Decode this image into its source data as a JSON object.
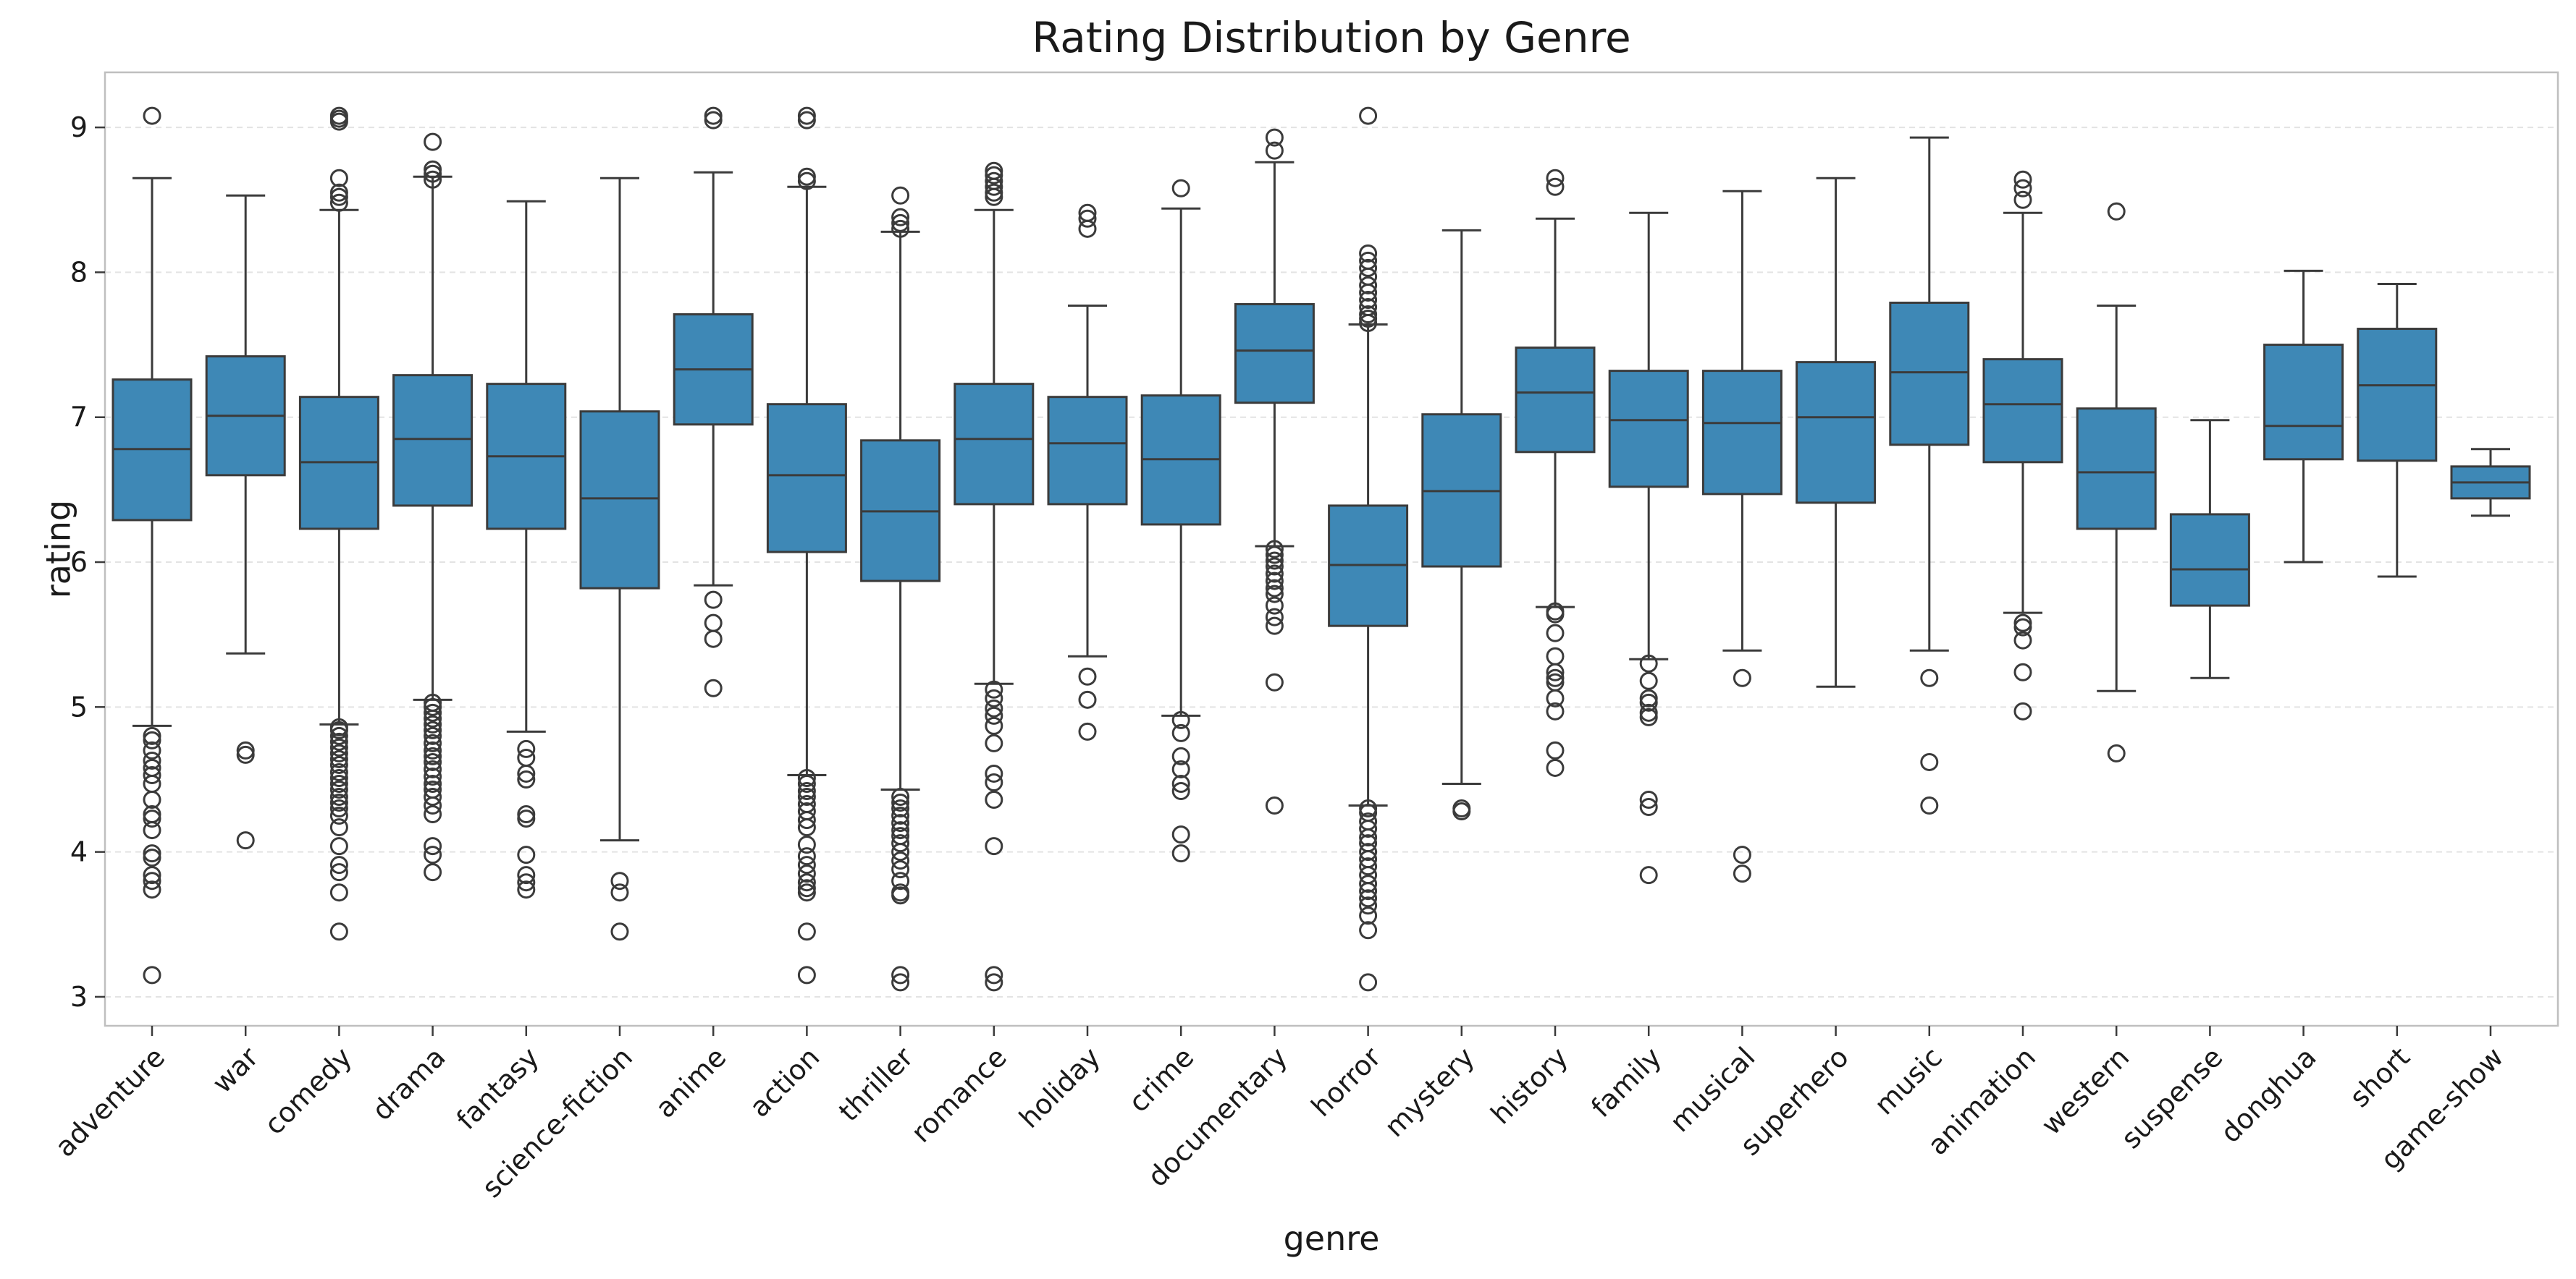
{
  "chart_data": {
    "type": "box",
    "title": "Rating Distribution by Genre",
    "xlabel": "genre",
    "ylabel": "rating",
    "ylim": [
      2.8,
      9.38
    ],
    "yticks": [
      3,
      4,
      5,
      6,
      7,
      8,
      9
    ],
    "grid": true,
    "box_color": "#3e88b6",
    "line_color": "#3b3b3b",
    "categories": [
      "adventure",
      "war",
      "comedy",
      "drama",
      "fantasy",
      "science-fiction",
      "anime",
      "action",
      "thriller",
      "romance",
      "holiday",
      "crime",
      "documentary",
      "horror",
      "mystery",
      "history",
      "family",
      "musical",
      "superhero",
      "music",
      "animation",
      "western",
      "suspense",
      "donghua",
      "short",
      "game-show"
    ],
    "boxes": [
      {
        "genre": "adventure",
        "whislo": 4.87,
        "q1": 6.29,
        "med": 6.78,
        "q3": 7.26,
        "whishi": 8.65,
        "fliers": [
          9.08,
          4.8,
          4.77,
          4.7,
          4.63,
          4.58,
          4.53,
          4.47,
          4.36,
          4.26,
          4.23,
          4.15,
          3.99,
          3.96,
          3.84,
          3.8,
          3.74,
          3.15
        ]
      },
      {
        "genre": "war",
        "whislo": 5.37,
        "q1": 6.6,
        "med": 7.01,
        "q3": 7.42,
        "whishi": 8.53,
        "fliers": [
          4.7,
          4.67,
          4.08
        ]
      },
      {
        "genre": "comedy",
        "whislo": 4.88,
        "q1": 6.23,
        "med": 6.69,
        "q3": 7.14,
        "whishi": 8.43,
        "fliers": [
          9.08,
          9.06,
          9.04,
          8.65,
          8.55,
          8.52,
          8.48,
          4.86,
          4.84,
          4.8,
          4.76,
          4.72,
          4.68,
          4.64,
          4.6,
          4.55,
          4.51,
          4.47,
          4.43,
          4.38,
          4.34,
          4.3,
          4.25,
          4.17,
          4.04,
          3.91,
          3.86,
          3.72,
          3.45
        ]
      },
      {
        "genre": "drama",
        "whislo": 5.05,
        "q1": 6.39,
        "med": 6.85,
        "q3": 7.29,
        "whishi": 8.66,
        "fliers": [
          8.9,
          8.71,
          8.68,
          8.64,
          5.03,
          5.0,
          4.96,
          4.92,
          4.88,
          4.84,
          4.8,
          4.75,
          4.7,
          4.66,
          4.62,
          4.57,
          4.52,
          4.47,
          4.43,
          4.38,
          4.32,
          4.26,
          4.04,
          3.98,
          3.86
        ]
      },
      {
        "genre": "fantasy",
        "whislo": 4.83,
        "q1": 6.23,
        "med": 6.73,
        "q3": 7.23,
        "whishi": 8.49,
        "fliers": [
          4.71,
          4.65,
          4.54,
          4.5,
          4.26,
          4.23,
          3.98,
          3.84,
          3.79,
          3.74
        ]
      },
      {
        "genre": "science-fiction",
        "whislo": 4.08,
        "q1": 5.82,
        "med": 6.44,
        "q3": 7.04,
        "whishi": 8.65,
        "fliers": [
          3.8,
          3.72,
          3.45
        ]
      },
      {
        "genre": "anime",
        "whislo": 5.84,
        "q1": 6.95,
        "med": 7.33,
        "q3": 7.71,
        "whishi": 8.69,
        "fliers": [
          9.08,
          9.05,
          5.74,
          5.58,
          5.47,
          5.13
        ]
      },
      {
        "genre": "action",
        "whislo": 4.53,
        "q1": 6.07,
        "med": 6.6,
        "q3": 7.09,
        "whishi": 8.59,
        "fliers": [
          9.08,
          9.05,
          8.66,
          8.63,
          4.51,
          4.47,
          4.42,
          4.38,
          4.33,
          4.28,
          4.22,
          4.17,
          4.05,
          3.97,
          3.91,
          3.85,
          3.79,
          3.75,
          3.72,
          3.45,
          3.15
        ]
      },
      {
        "genre": "thriller",
        "whislo": 4.43,
        "q1": 5.87,
        "med": 6.35,
        "q3": 6.84,
        "whishi": 8.28,
        "fliers": [
          8.53,
          8.38,
          8.34,
          8.3,
          4.38,
          4.34,
          4.3,
          4.25,
          4.2,
          4.15,
          4.11,
          4.06,
          4.0,
          3.94,
          3.88,
          3.8,
          3.72,
          3.7,
          3.15,
          3.1
        ]
      },
      {
        "genre": "romance",
        "whislo": 5.16,
        "q1": 6.4,
        "med": 6.85,
        "q3": 7.23,
        "whishi": 8.43,
        "fliers": [
          8.7,
          8.67,
          8.63,
          8.59,
          8.55,
          8.52,
          5.12,
          5.06,
          4.99,
          4.94,
          4.87,
          4.75,
          4.54,
          4.48,
          4.36,
          4.04,
          3.15,
          3.1
        ]
      },
      {
        "genre": "holiday",
        "whislo": 5.35,
        "q1": 6.4,
        "med": 6.82,
        "q3": 7.14,
        "whishi": 7.77,
        "fliers": [
          8.41,
          8.37,
          8.3,
          5.21,
          5.05,
          4.83
        ]
      },
      {
        "genre": "crime",
        "whislo": 4.94,
        "q1": 6.26,
        "med": 6.71,
        "q3": 7.15,
        "whishi": 8.44,
        "fliers": [
          8.58,
          4.91,
          4.82,
          4.66,
          4.57,
          4.47,
          4.42,
          4.12,
          3.99
        ]
      },
      {
        "genre": "documentary",
        "whislo": 6.11,
        "q1": 7.1,
        "med": 7.46,
        "q3": 7.78,
        "whishi": 8.76,
        "fliers": [
          8.93,
          8.84,
          6.09,
          6.05,
          6.01,
          5.97,
          5.92,
          5.87,
          5.82,
          5.78,
          5.7,
          5.62,
          5.56,
          5.17,
          4.32
        ]
      },
      {
        "genre": "horror",
        "whislo": 4.32,
        "q1": 5.56,
        "med": 5.98,
        "q3": 6.39,
        "whishi": 7.64,
        "fliers": [
          9.08,
          8.13,
          8.08,
          8.03,
          7.97,
          7.91,
          7.86,
          7.81,
          7.76,
          7.71,
          7.68,
          7.65,
          4.3,
          4.27,
          4.21,
          4.16,
          4.1,
          4.06,
          4.0,
          3.95,
          3.9,
          3.84,
          3.78,
          3.73,
          3.68,
          3.63,
          3.56,
          3.46,
          3.1
        ]
      },
      {
        "genre": "mystery",
        "whislo": 4.47,
        "q1": 5.97,
        "med": 6.49,
        "q3": 7.02,
        "whishi": 8.29,
        "fliers": [
          4.3,
          4.28
        ]
      },
      {
        "genre": "history",
        "whislo": 5.69,
        "q1": 6.76,
        "med": 7.17,
        "q3": 7.48,
        "whishi": 8.37,
        "fliers": [
          8.65,
          8.59,
          5.66,
          5.64,
          5.51,
          5.35,
          5.24,
          5.2,
          5.17,
          5.06,
          4.97,
          4.7,
          4.58
        ]
      },
      {
        "genre": "family",
        "whislo": 5.33,
        "q1": 6.52,
        "med": 6.98,
        "q3": 7.32,
        "whishi": 8.41,
        "fliers": [
          5.3,
          5.18,
          5.06,
          5.03,
          4.96,
          4.93,
          4.36,
          4.31,
          3.84
        ]
      },
      {
        "genre": "musical",
        "whislo": 5.39,
        "q1": 6.47,
        "med": 6.96,
        "q3": 7.32,
        "whishi": 8.56,
        "fliers": [
          5.2,
          3.98,
          3.85
        ]
      },
      {
        "genre": "superhero",
        "whislo": 5.14,
        "q1": 6.41,
        "med": 7.0,
        "q3": 7.38,
        "whishi": 8.65,
        "fliers": []
      },
      {
        "genre": "music",
        "whislo": 5.39,
        "q1": 6.81,
        "med": 7.31,
        "q3": 7.79,
        "whishi": 8.93,
        "fliers": [
          5.2,
          4.62,
          4.32
        ]
      },
      {
        "genre": "animation",
        "whislo": 5.65,
        "q1": 6.69,
        "med": 7.09,
        "q3": 7.4,
        "whishi": 8.41,
        "fliers": [
          8.64,
          8.58,
          8.5,
          5.58,
          5.55,
          5.46,
          5.24,
          4.97
        ]
      },
      {
        "genre": "western",
        "whislo": 5.11,
        "q1": 6.23,
        "med": 6.62,
        "q3": 7.06,
        "whishi": 7.77,
        "fliers": [
          8.42,
          4.68
        ]
      },
      {
        "genre": "suspense",
        "whislo": 5.2,
        "q1": 5.7,
        "med": 5.95,
        "q3": 6.33,
        "whishi": 6.98,
        "fliers": []
      },
      {
        "genre": "donghua",
        "whislo": 6.0,
        "q1": 6.71,
        "med": 6.94,
        "q3": 7.5,
        "whishi": 8.01,
        "fliers": []
      },
      {
        "genre": "short",
        "whislo": 5.9,
        "q1": 6.7,
        "med": 7.22,
        "q3": 7.61,
        "whishi": 7.92,
        "fliers": []
      },
      {
        "genre": "game-show",
        "whislo": 6.32,
        "q1": 6.44,
        "med": 6.55,
        "q3": 6.66,
        "whishi": 6.78,
        "fliers": []
      }
    ]
  }
}
